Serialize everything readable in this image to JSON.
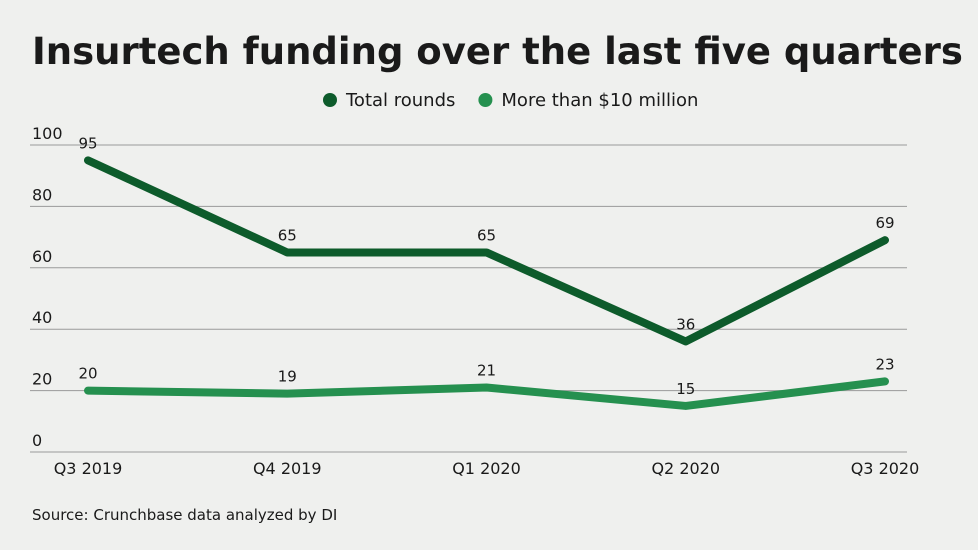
{
  "chart_data": {
    "type": "line",
    "title": "Insurtech funding over the last five quarters",
    "categories": [
      "Q3 2019",
      "Q4 2019",
      "Q1 2020",
      "Q2 2020",
      "Q3 2020"
    ],
    "series": [
      {
        "name": "Total rounds",
        "color": "#0d5b2b",
        "values": [
          95,
          65,
          65,
          36,
          69
        ]
      },
      {
        "name": "More than $10 million",
        "color": "#25904f",
        "values": [
          20,
          19,
          21,
          15,
          23
        ]
      }
    ],
    "ylim": [
      0,
      100
    ],
    "yticks": [
      0,
      20,
      40,
      60,
      80,
      100
    ],
    "grid": true,
    "source": "Source: Crunchbase data analyzed by DI"
  }
}
